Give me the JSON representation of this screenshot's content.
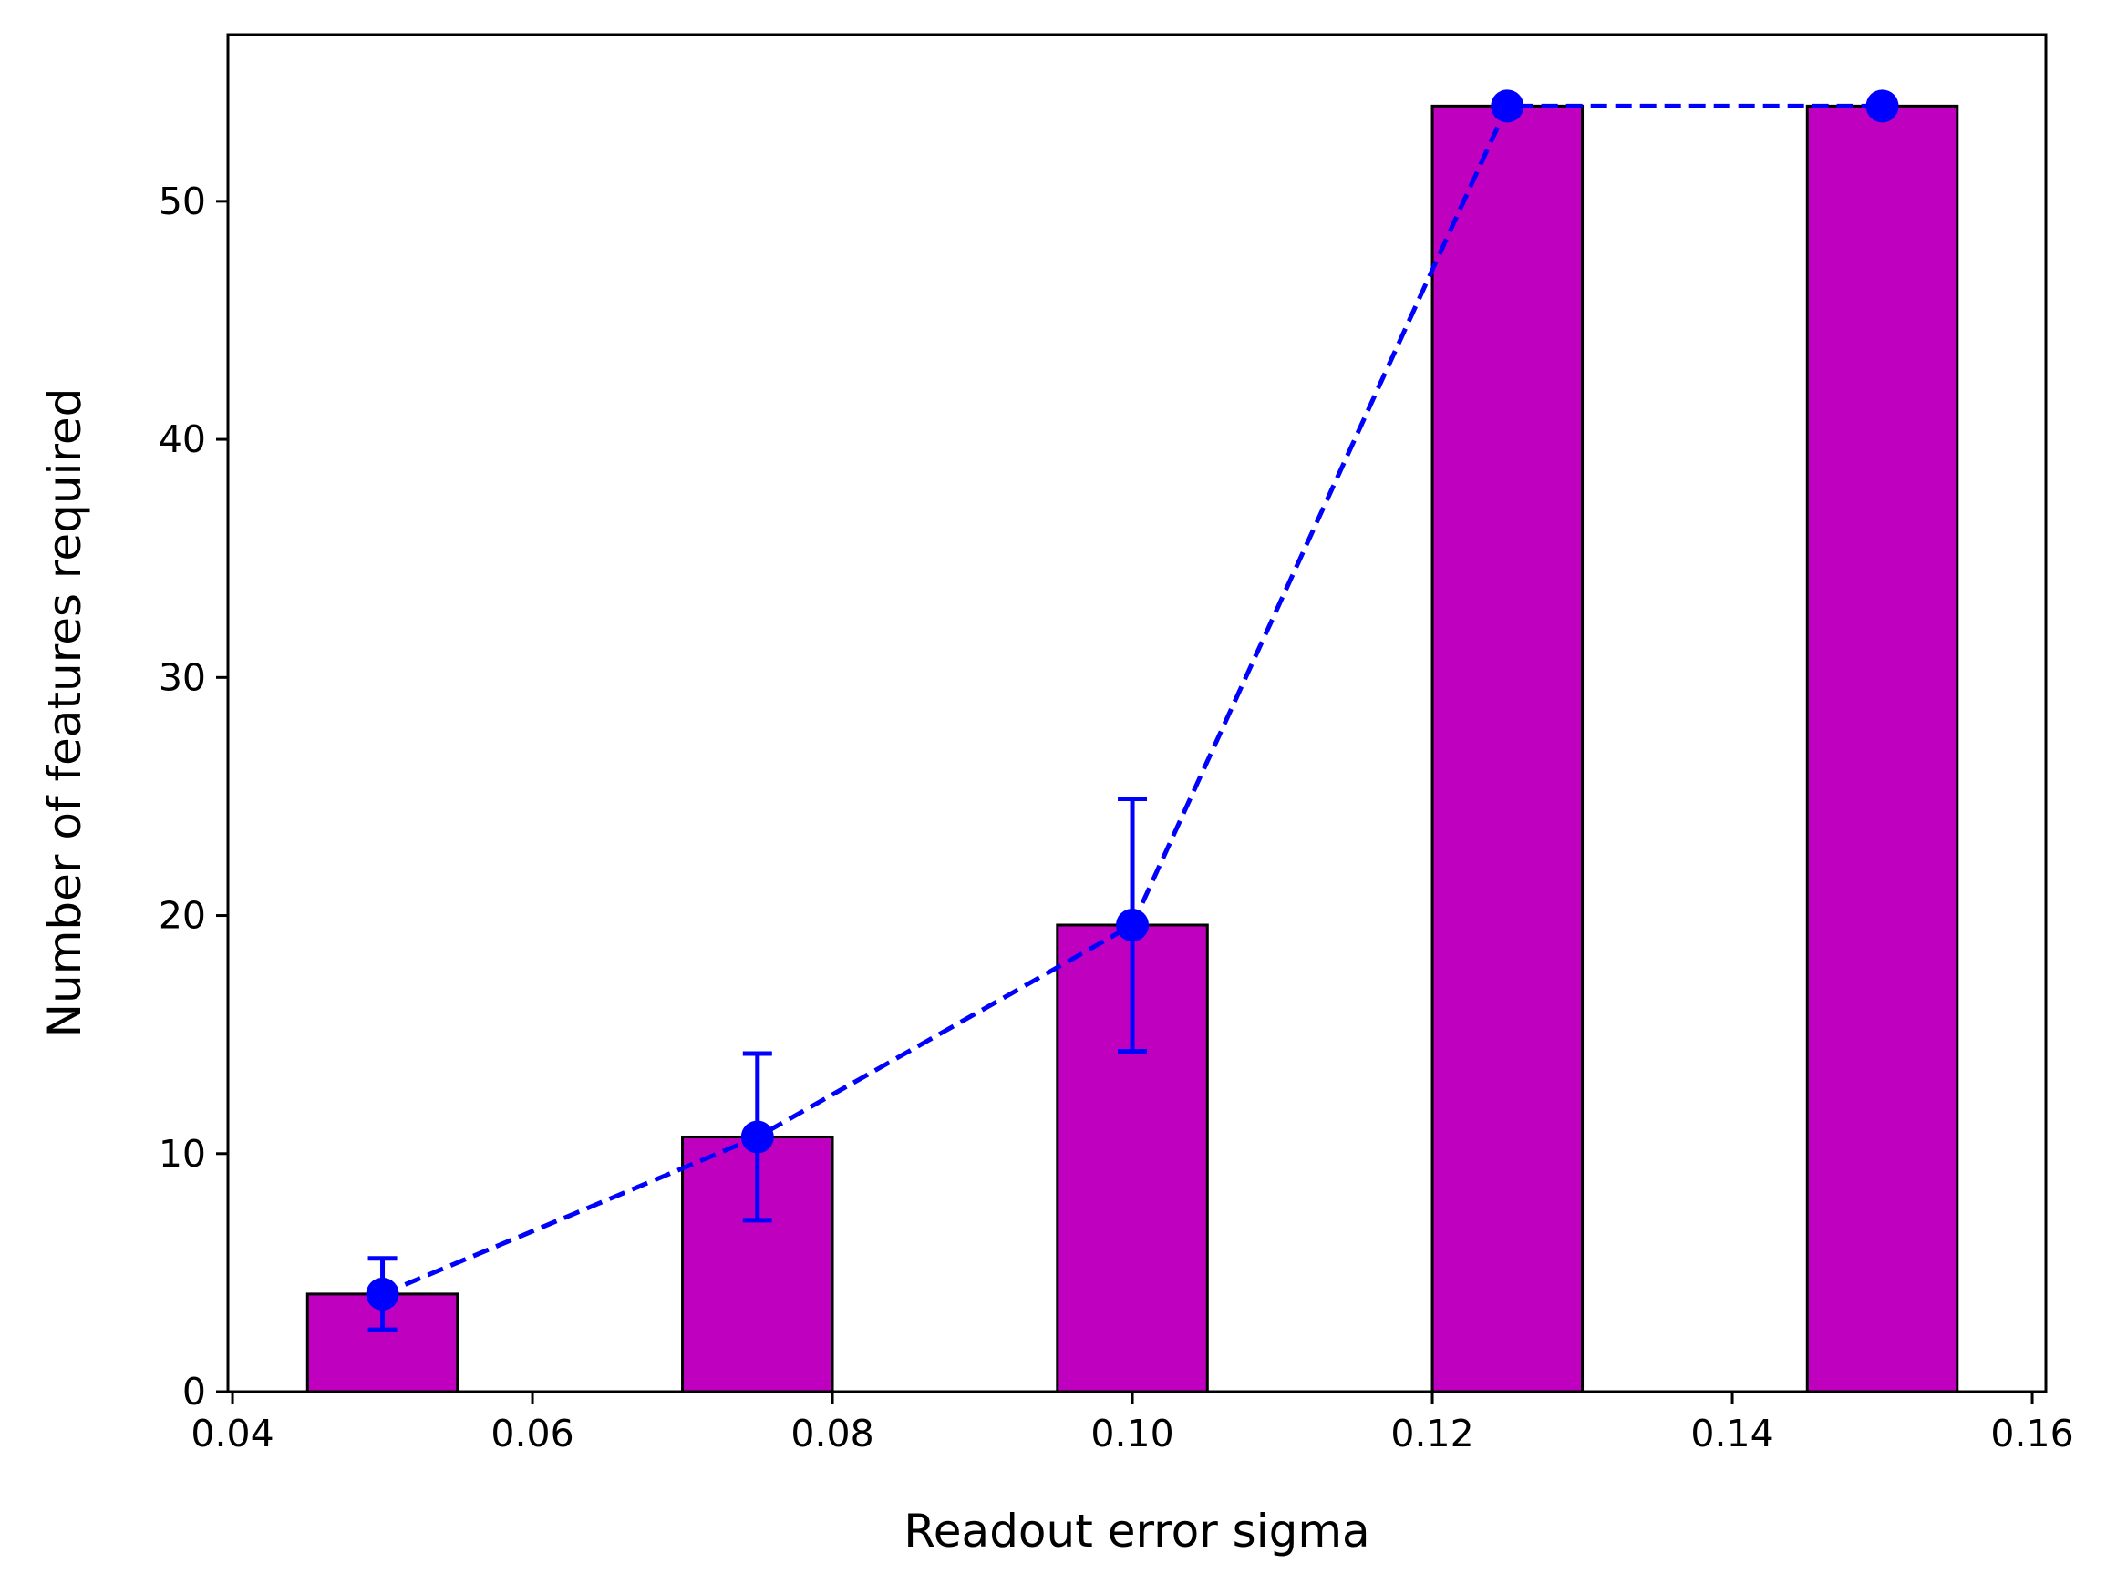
{
  "chart_data": {
    "type": "bar",
    "xlabel": "Readout error sigma",
    "ylabel": "Number of features required",
    "xlim": [
      0.04,
      0.16
    ],
    "ylim": [
      0,
      57
    ],
    "xticks": [
      "0.04",
      "0.06",
      "0.08",
      "0.10",
      "0.12",
      "0.14",
      "0.16"
    ],
    "yticks": [
      "0",
      "10",
      "20",
      "30",
      "40",
      "50"
    ],
    "bar_width": 0.01,
    "bar_color": "#bf00bf",
    "line_color": "#0000ff",
    "grid": false,
    "x": [
      0.05,
      0.075,
      0.1,
      0.125,
      0.15
    ],
    "values": [
      4.1,
      10.7,
      19.6,
      54,
      54
    ],
    "error_low": [
      2.6,
      7.2,
      14.3,
      54,
      54
    ],
    "error_high": [
      5.6,
      14.2,
      24.9,
      54,
      54
    ]
  }
}
